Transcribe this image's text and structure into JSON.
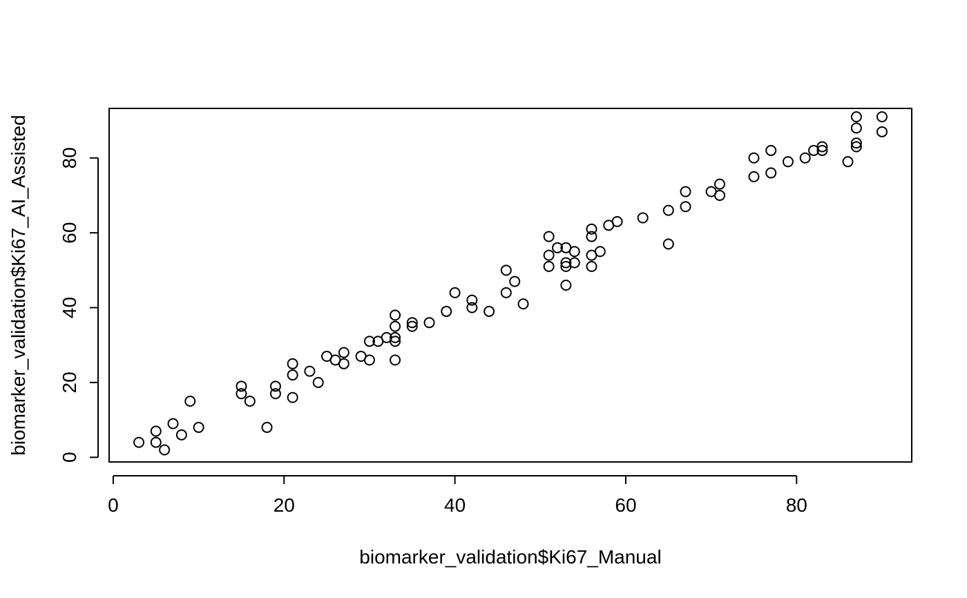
{
  "chart_data": {
    "type": "scatter",
    "title": "",
    "xlabel": "biomarker_validation$Ki67_Manual",
    "ylabel": "biomarker_validation$Ki67_AI_Assisted",
    "xlim": [
      -0.48,
      93.48
    ],
    "ylim": [
      -1.24,
      93.24
    ],
    "x_ticks": [
      0,
      20,
      40,
      60,
      80
    ],
    "y_ticks": [
      0,
      20,
      40,
      60,
      80
    ],
    "x_tick_labels": [
      "0",
      "20",
      "40",
      "60",
      "80"
    ],
    "y_tick_labels": [
      "0",
      "20",
      "40",
      "60",
      "80"
    ],
    "grid": false,
    "legend": "none",
    "marker": "open-circle",
    "points": [
      {
        "x": 3,
        "y": 4
      },
      {
        "x": 5,
        "y": 7
      },
      {
        "x": 5,
        "y": 4
      },
      {
        "x": 6,
        "y": 2
      },
      {
        "x": 7,
        "y": 9
      },
      {
        "x": 8,
        "y": 6
      },
      {
        "x": 9,
        "y": 15
      },
      {
        "x": 10,
        "y": 8
      },
      {
        "x": 15,
        "y": 19
      },
      {
        "x": 15,
        "y": 17
      },
      {
        "x": 16,
        "y": 15
      },
      {
        "x": 18,
        "y": 8
      },
      {
        "x": 19,
        "y": 19
      },
      {
        "x": 19,
        "y": 17
      },
      {
        "x": 21,
        "y": 25
      },
      {
        "x": 21,
        "y": 22
      },
      {
        "x": 21,
        "y": 16
      },
      {
        "x": 23,
        "y": 23
      },
      {
        "x": 24,
        "y": 20
      },
      {
        "x": 25,
        "y": 27
      },
      {
        "x": 26,
        "y": 26
      },
      {
        "x": 27,
        "y": 28
      },
      {
        "x": 27,
        "y": 25
      },
      {
        "x": 29,
        "y": 27
      },
      {
        "x": 30,
        "y": 31
      },
      {
        "x": 30,
        "y": 26
      },
      {
        "x": 31,
        "y": 31
      },
      {
        "x": 32,
        "y": 32
      },
      {
        "x": 33,
        "y": 38
      },
      {
        "x": 33,
        "y": 35
      },
      {
        "x": 33,
        "y": 32
      },
      {
        "x": 33,
        "y": 31
      },
      {
        "x": 33,
        "y": 26
      },
      {
        "x": 35,
        "y": 36
      },
      {
        "x": 35,
        "y": 35
      },
      {
        "x": 37,
        "y": 36
      },
      {
        "x": 39,
        "y": 39
      },
      {
        "x": 40,
        "y": 44
      },
      {
        "x": 42,
        "y": 42
      },
      {
        "x": 42,
        "y": 40
      },
      {
        "x": 44,
        "y": 39
      },
      {
        "x": 46,
        "y": 50
      },
      {
        "x": 46,
        "y": 44
      },
      {
        "x": 47,
        "y": 47
      },
      {
        "x": 48,
        "y": 41
      },
      {
        "x": 51,
        "y": 59
      },
      {
        "x": 51,
        "y": 54
      },
      {
        "x": 51,
        "y": 51
      },
      {
        "x": 52,
        "y": 56
      },
      {
        "x": 53,
        "y": 56
      },
      {
        "x": 53,
        "y": 52
      },
      {
        "x": 53,
        "y": 51
      },
      {
        "x": 53,
        "y": 46
      },
      {
        "x": 54,
        "y": 55
      },
      {
        "x": 54,
        "y": 52
      },
      {
        "x": 56,
        "y": 61
      },
      {
        "x": 56,
        "y": 59
      },
      {
        "x": 56,
        "y": 54
      },
      {
        "x": 56,
        "y": 51
      },
      {
        "x": 57,
        "y": 55
      },
      {
        "x": 58,
        "y": 62
      },
      {
        "x": 59,
        "y": 63
      },
      {
        "x": 62,
        "y": 64
      },
      {
        "x": 65,
        "y": 66
      },
      {
        "x": 65,
        "y": 57
      },
      {
        "x": 67,
        "y": 71
      },
      {
        "x": 67,
        "y": 67
      },
      {
        "x": 70,
        "y": 71
      },
      {
        "x": 71,
        "y": 73
      },
      {
        "x": 71,
        "y": 70
      },
      {
        "x": 75,
        "y": 80
      },
      {
        "x": 75,
        "y": 75
      },
      {
        "x": 77,
        "y": 82
      },
      {
        "x": 77,
        "y": 76
      },
      {
        "x": 79,
        "y": 79
      },
      {
        "x": 81,
        "y": 80
      },
      {
        "x": 82,
        "y": 82
      },
      {
        "x": 83,
        "y": 83
      },
      {
        "x": 83,
        "y": 82
      },
      {
        "x": 86,
        "y": 79
      },
      {
        "x": 87,
        "y": 91
      },
      {
        "x": 87,
        "y": 88
      },
      {
        "x": 87,
        "y": 84
      },
      {
        "x": 87,
        "y": 83
      },
      {
        "x": 90,
        "y": 91
      },
      {
        "x": 90,
        "y": 87
      }
    ]
  }
}
